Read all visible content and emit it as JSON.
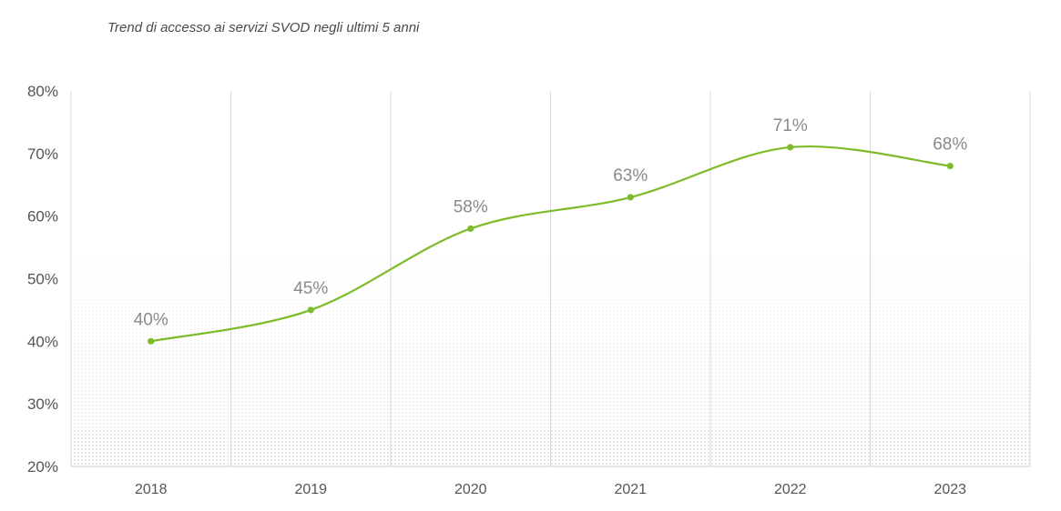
{
  "subtitle": "Trend di accesso ai servizi SVOD negli ultimi 5 anni",
  "colors": {
    "line": "#7dbb28",
    "grid": "#d9d9d9",
    "axis": "#cccccc"
  },
  "chart_data": {
    "type": "line",
    "title": "Trend di accesso ai servizi SVOD negli ultimi 5 anni",
    "categories": [
      "2018",
      "2019",
      "2020",
      "2021",
      "2022",
      "2023"
    ],
    "series": [
      {
        "values": [
          40,
          45,
          58,
          63,
          71,
          68
        ]
      }
    ],
    "data_labels": [
      "40%",
      "45%",
      "58%",
      "63%",
      "71%",
      "68%"
    ],
    "ylim": [
      20,
      80
    ],
    "yticks": [
      20,
      30,
      40,
      50,
      60,
      70,
      80
    ],
    "ytick_labels": [
      "20%",
      "30%",
      "40%",
      "50%",
      "60%",
      "70%",
      "80%"
    ],
    "grid": "vertical",
    "legend": "none"
  }
}
